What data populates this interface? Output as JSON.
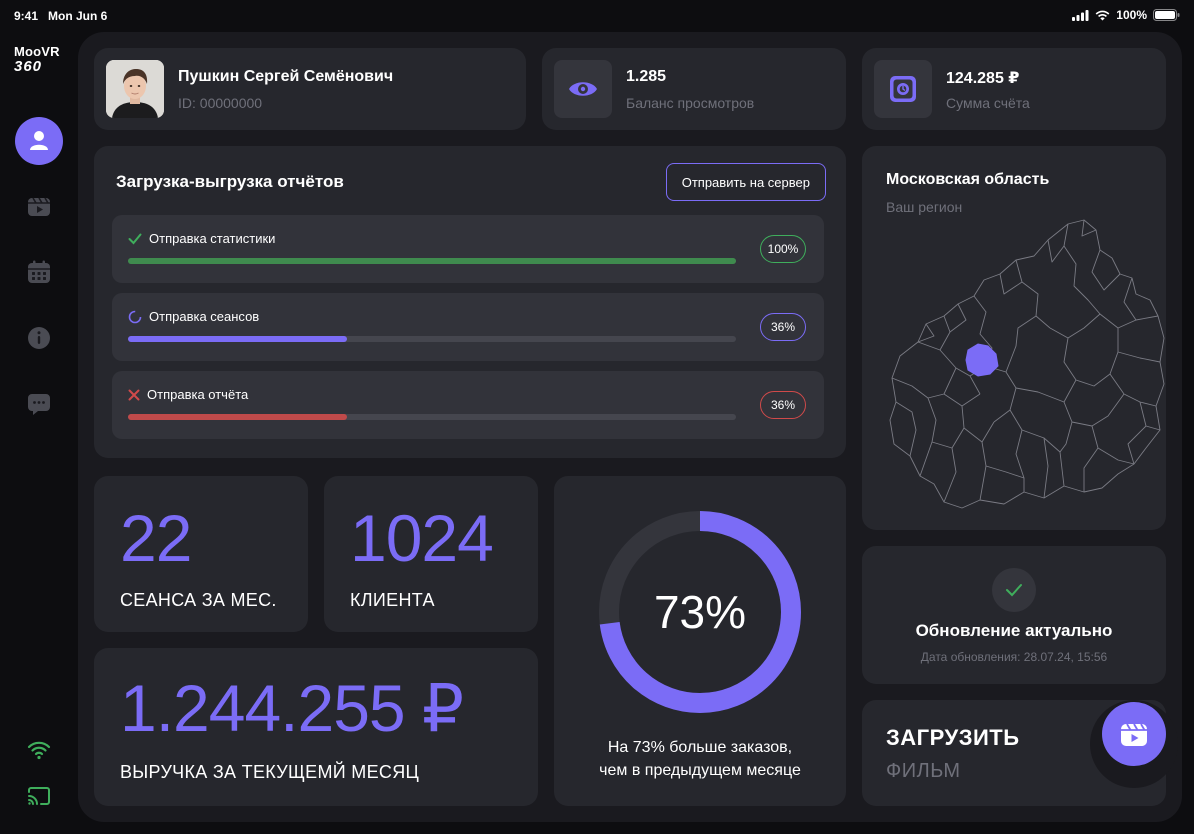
{
  "status_bar": {
    "time": "9:41",
    "date": "Mon Jun 6",
    "battery": "100%"
  },
  "app": {
    "logo_line1": "MooVR",
    "logo_line2": "360"
  },
  "profile": {
    "name": "Пушкин Сергей Семёнович",
    "id": "ID: 00000000"
  },
  "views": {
    "value": "1.285",
    "label": "Баланс просмотров",
    "icon": "eye-icon"
  },
  "account": {
    "value": "124.285 ₽",
    "label": "Сумма счёта",
    "icon": "safe-icon"
  },
  "reports": {
    "title": "Загрузка-выгрузка отчётов",
    "send_button": "Отправить на сервер",
    "items": [
      {
        "label": "Отправка статистики",
        "percent": "100%",
        "progress": 100,
        "status": "success",
        "color": "#3f8b4e",
        "badge_color": "#3fae5c",
        "status_icon": "check-icon"
      },
      {
        "label": "Отправка сеансов",
        "percent": "36%",
        "progress": 36,
        "status": "in-progress",
        "color": "#7b6cf6",
        "badge_color": "#7b6cf6",
        "status_icon": "spinner-icon"
      },
      {
        "label": "Отправка отчёта",
        "percent": "36%",
        "progress": 36,
        "status": "error",
        "color": "#c04a4a",
        "badge_color": "#d04a4a",
        "status_icon": "cross-icon"
      }
    ]
  },
  "region": {
    "name": "Московская область",
    "label": "Ваш регион",
    "accent": "#7b6cf6"
  },
  "stats": {
    "sessions": {
      "value": "22",
      "caption": "СЕАНСА ЗА МЕС."
    },
    "clients": {
      "value": "1024",
      "caption": "КЛИЕНТА"
    },
    "revenue": {
      "value": "1.244.255 ₽",
      "caption": "ВЫРУЧКА ЗА ТЕКУЩЕМЙ МЕСЯЦ"
    }
  },
  "growth": {
    "percent_label": "73%",
    "percent": 73,
    "caption_line1": "На 73% больше заказов,",
    "caption_line2": "чем в предыдущем месяце"
  },
  "update": {
    "title": "Обновление актуально",
    "date": "Дата обновления: 28.07.24, 15:56"
  },
  "upload": {
    "line1": "ЗАГРУЗИТЬ",
    "line2": "ФИЛЬМ"
  },
  "nav": [
    "profile-icon",
    "video-icon",
    "calendar-icon",
    "info-icon",
    "chat-icon"
  ],
  "colors": {
    "accent": "#7b6cf6",
    "card": "#26272d",
    "panel": "#1a1a1f",
    "success": "#3f8b4e",
    "error": "#c04a4a"
  }
}
